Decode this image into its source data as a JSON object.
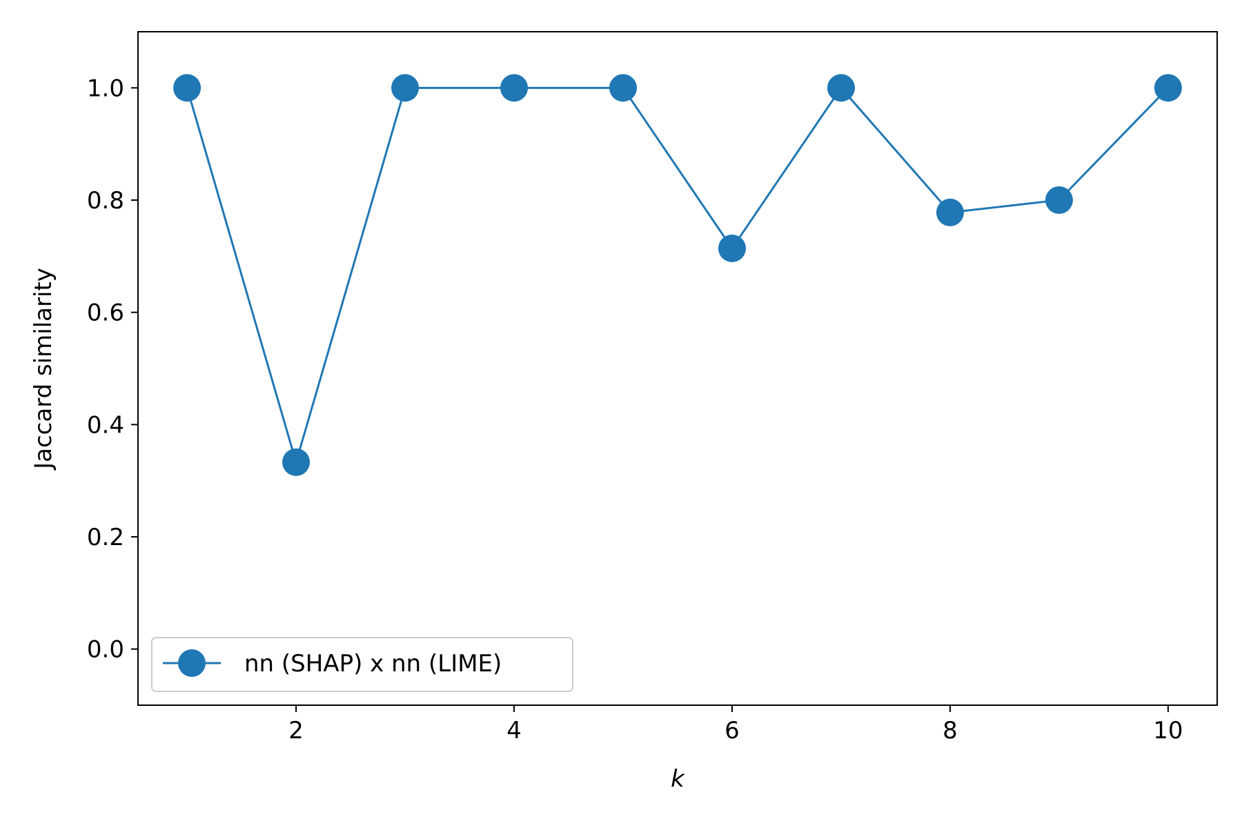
{
  "chart_data": {
    "type": "line",
    "title": "",
    "xlabel": "k",
    "ylabel": "Jaccard similarity",
    "x": [
      1,
      2,
      3,
      4,
      5,
      6,
      7,
      8,
      9,
      10
    ],
    "series": [
      {
        "name": "nn (SHAP) x nn (LIME)",
        "values": [
          1.0,
          0.333,
          1.0,
          1.0,
          1.0,
          0.714,
          1.0,
          0.778,
          0.8,
          1.0
        ],
        "color": "#1f77b4",
        "marker": "circle"
      }
    ],
    "xlim": [
      0.55,
      10.45
    ],
    "ylim": [
      -0.1,
      1.1
    ],
    "xticks": [
      2,
      4,
      6,
      8,
      10
    ],
    "xtick_labels": [
      "2",
      "4",
      "6",
      "8",
      "10"
    ],
    "yticks": [
      0.0,
      0.2,
      0.4,
      0.6,
      0.8,
      1.0
    ],
    "ytick_labels": [
      "0.0",
      "0.2",
      "0.4",
      "0.6",
      "0.8",
      "1.0"
    ],
    "grid": false,
    "legend": "lower-left"
  }
}
